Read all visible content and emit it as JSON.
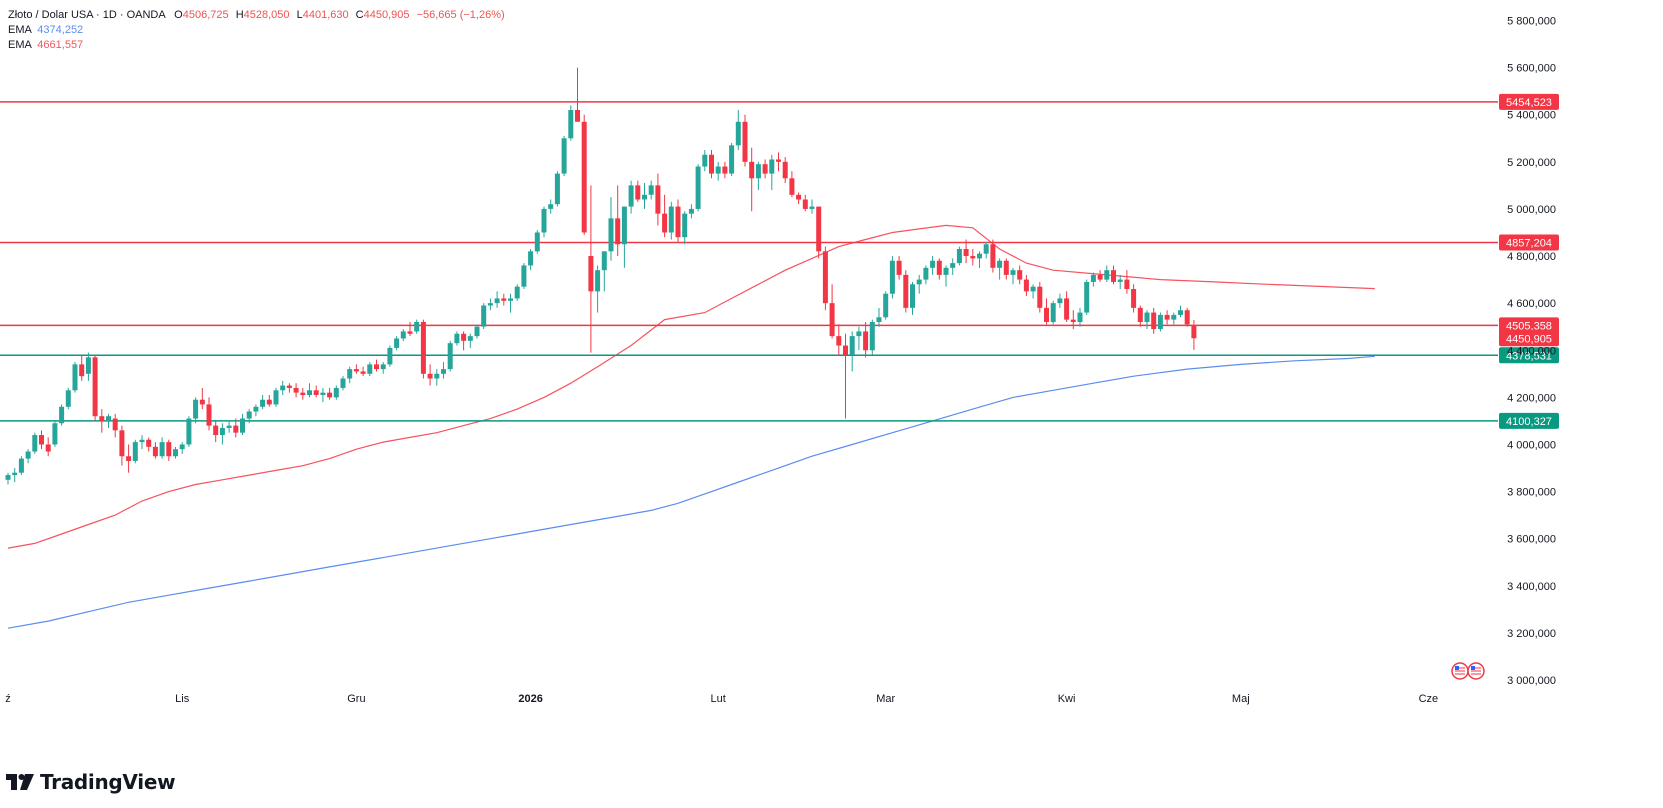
{
  "header": {
    "symbol_line": "Złoto / Dolar USA · 1D · OANDA",
    "o_label": "O",
    "o_value": "4506,725",
    "h_label": "H",
    "h_value": "4528,050",
    "l_label": "L",
    "l_value": "4401,630",
    "c_label": "C",
    "c_value": "4450,905",
    "change": "−56,665 (−1,26%)",
    "ema1_label": "EMA",
    "ema1_value": "4374,252",
    "ema2_label": "EMA",
    "ema2_value": "4661,557"
  },
  "brand": {
    "name": "TradingView"
  },
  "colors": {
    "up": "#26a69a",
    "down": "#f23645",
    "ema_fast": "#f7525f",
    "ema_slow": "#5b8def",
    "resistance": "#f23645",
    "support": "#089981"
  },
  "chart_data": {
    "type": "candlestick",
    "ylim": [
      3000,
      5900
    ],
    "y_ticks": [
      "3 000,000",
      "3 200,000",
      "3 400,000",
      "3 600,000",
      "3 800,000",
      "4 000,000",
      "4 200,000",
      "4 400,000",
      "4 600,000",
      "4 800,000",
      "5 000,000",
      "5 200,000",
      "5 400,000",
      "5 600,000",
      "5 800,000"
    ],
    "y_tick_values": [
      3000,
      3200,
      3400,
      3600,
      3800,
      4000,
      4200,
      4400,
      4600,
      4800,
      5000,
      5200,
      5400,
      5600,
      5800
    ],
    "x_ticks": [
      {
        "label": "ź",
        "index": 0
      },
      {
        "label": "Lis",
        "index": 26
      },
      {
        "label": "Gru",
        "index": 52
      },
      {
        "label": "2026",
        "index": 78
      },
      {
        "label": "Lut",
        "index": 106
      },
      {
        "label": "Mar",
        "index": 131
      },
      {
        "label": "Kwi",
        "index": 158
      },
      {
        "label": "Maj",
        "index": 184
      },
      {
        "label": "Cze",
        "index": 212
      }
    ],
    "levels": [
      {
        "value": 5454.523,
        "label": "5454,523",
        "kind": "resistance"
      },
      {
        "value": 4857.204,
        "label": "4857,204",
        "kind": "resistance"
      },
      {
        "value": 4505.358,
        "label": "4505,358",
        "kind": "resistance"
      },
      {
        "value": 4378.531,
        "label": "4378,531",
        "kind": "support"
      },
      {
        "value": 4100.327,
        "label": "4100,327",
        "kind": "support"
      }
    ],
    "last_price": {
      "value": 4450.905,
      "label": "4450,905"
    },
    "ema_fast": [
      3560,
      3580,
      3620,
      3660,
      3700,
      3760,
      3800,
      3830,
      3850,
      3870,
      3890,
      3910,
      3940,
      3980,
      4010,
      4030,
      4050,
      4080,
      4110,
      4150,
      4200,
      4260,
      4330,
      4420,
      4530,
      4560,
      4620,
      4680,
      4740,
      4790,
      4840,
      4870,
      4900,
      4915,
      4930,
      4920,
      4830,
      4770,
      4740,
      4720,
      4700,
      4690,
      4680,
      4661.557
    ],
    "ema_fast_x": [
      0,
      4,
      8,
      12,
      16,
      20,
      24,
      28,
      32,
      36,
      40,
      44,
      48,
      52,
      56,
      60,
      64,
      68,
      72,
      76,
      80,
      84,
      88,
      93,
      98,
      104,
      108,
      112,
      116,
      120,
      124,
      128,
      132,
      136,
      140,
      144,
      148,
      152,
      156,
      164,
      172,
      180,
      188,
      204
    ],
    "ema_slow": [
      3220,
      3250,
      3290,
      3330,
      3360,
      3390,
      3420,
      3450,
      3480,
      3510,
      3540,
      3570,
      3600,
      3630,
      3660,
      3690,
      3720,
      3750,
      3790,
      3830,
      3870,
      3910,
      3950,
      4000,
      4050,
      4100,
      4150,
      4200,
      4230,
      4260,
      4290,
      4320,
      4340,
      4355,
      4365,
      4374.252
    ],
    "ema_slow_x": [
      0,
      6,
      12,
      18,
      24,
      30,
      36,
      42,
      48,
      54,
      60,
      66,
      72,
      78,
      84,
      90,
      96,
      100,
      104,
      108,
      112,
      116,
      120,
      126,
      132,
      138,
      144,
      150,
      156,
      162,
      168,
      176,
      184,
      192,
      200,
      204
    ],
    "candles": [
      [
        3850,
        3880,
        3830,
        3870
      ],
      [
        3870,
        3900,
        3840,
        3880
      ],
      [
        3880,
        3950,
        3870,
        3940
      ],
      [
        3940,
        3980,
        3920,
        3970
      ],
      [
        3970,
        4050,
        3960,
        4040
      ],
      [
        4040,
        4060,
        3980,
        4000
      ],
      [
        4000,
        4030,
        3950,
        3970
      ],
      [
        4000,
        4100,
        3990,
        4090
      ],
      [
        4090,
        4170,
        4080,
        4160
      ],
      [
        4160,
        4240,
        4150,
        4230
      ],
      [
        4230,
        4350,
        4220,
        4340
      ],
      [
        4340,
        4380,
        4270,
        4290
      ],
      [
        4300,
        4390,
        4270,
        4370
      ],
      [
        4370,
        4380,
        4100,
        4120
      ],
      [
        4120,
        4150,
        4050,
        4100
      ],
      [
        4100,
        4130,
        4070,
        4120
      ],
      [
        4110,
        4130,
        4030,
        4060
      ],
      [
        4060,
        4080,
        3910,
        3950
      ],
      [
        3950,
        4000,
        3880,
        3930
      ],
      [
        3930,
        4020,
        3920,
        4010
      ],
      [
        4010,
        4040,
        3980,
        4020
      ],
      [
        4020,
        4030,
        3970,
        3990
      ],
      [
        3990,
        4010,
        3940,
        3950
      ],
      [
        3950,
        4030,
        3940,
        4010
      ],
      [
        4010,
        4020,
        3930,
        3950
      ],
      [
        3950,
        3990,
        3940,
        3980
      ],
      [
        3980,
        4010,
        3960,
        4000
      ],
      [
        4000,
        4120,
        3990,
        4110
      ],
      [
        4110,
        4200,
        4090,
        4190
      ],
      [
        4190,
        4240,
        4150,
        4170
      ],
      [
        4170,
        4200,
        4060,
        4080
      ],
      [
        4080,
        4100,
        4010,
        4040
      ],
      [
        4040,
        4090,
        4000,
        4070
      ],
      [
        4070,
        4100,
        4050,
        4080
      ],
      [
        4080,
        4110,
        4030,
        4050
      ],
      [
        4050,
        4130,
        4040,
        4110
      ],
      [
        4110,
        4150,
        4090,
        4140
      ],
      [
        4140,
        4170,
        4120,
        4160
      ],
      [
        4160,
        4210,
        4150,
        4190
      ],
      [
        4190,
        4210,
        4160,
        4170
      ],
      [
        4170,
        4240,
        4160,
        4230
      ],
      [
        4230,
        4270,
        4210,
        4250
      ],
      [
        4250,
        4260,
        4220,
        4240
      ],
      [
        4240,
        4260,
        4200,
        4220
      ],
      [
        4220,
        4240,
        4190,
        4210
      ],
      [
        4210,
        4260,
        4200,
        4230
      ],
      [
        4230,
        4250,
        4200,
        4210
      ],
      [
        4210,
        4240,
        4180,
        4220
      ],
      [
        4220,
        4240,
        4190,
        4200
      ],
      [
        4200,
        4250,
        4190,
        4240
      ],
      [
        4240,
        4290,
        4230,
        4280
      ],
      [
        4280,
        4330,
        4260,
        4320
      ],
      [
        4320,
        4340,
        4300,
        4310
      ],
      [
        4310,
        4330,
        4290,
        4300
      ],
      [
        4300,
        4350,
        4290,
        4340
      ],
      [
        4340,
        4360,
        4310,
        4320
      ],
      [
        4320,
        4350,
        4300,
        4340
      ],
      [
        4340,
        4420,
        4330,
        4410
      ],
      [
        4410,
        4460,
        4400,
        4450
      ],
      [
        4450,
        4490,
        4440,
        4480
      ],
      [
        4480,
        4520,
        4460,
        4470
      ],
      [
        4480,
        4530,
        4470,
        4520
      ],
      [
        4520,
        4530,
        4280,
        4300
      ],
      [
        4300,
        4340,
        4250,
        4280
      ],
      [
        4280,
        4320,
        4250,
        4300
      ],
      [
        4300,
        4350,
        4280,
        4320
      ],
      [
        4320,
        4440,
        4310,
        4430
      ],
      [
        4430,
        4480,
        4420,
        4470
      ],
      [
        4470,
        4480,
        4400,
        4440
      ],
      [
        4440,
        4470,
        4410,
        4460
      ],
      [
        4460,
        4510,
        4450,
        4500
      ],
      [
        4500,
        4600,
        4490,
        4590
      ],
      [
        4590,
        4620,
        4570,
        4600
      ],
      [
        4600,
        4650,
        4580,
        4620
      ],
      [
        4620,
        4640,
        4590,
        4610
      ],
      [
        4610,
        4640,
        4560,
        4620
      ],
      [
        4620,
        4680,
        4610,
        4670
      ],
      [
        4670,
        4770,
        4660,
        4760
      ],
      [
        4760,
        4830,
        4740,
        4820
      ],
      [
        4820,
        4910,
        4810,
        4900
      ],
      [
        4900,
        5010,
        4880,
        5000
      ],
      [
        5000,
        5040,
        4980,
        5020
      ],
      [
        5020,
        5160,
        5010,
        5150
      ],
      [
        5150,
        5310,
        5140,
        5300
      ],
      [
        5300,
        5440,
        5290,
        5420
      ],
      [
        5420,
        5600,
        5380,
        5370
      ],
      [
        5370,
        5400,
        4890,
        4900
      ],
      [
        4800,
        5100,
        4390,
        4650
      ],
      [
        4650,
        4760,
        4560,
        4740
      ],
      [
        4740,
        4820,
        4650,
        4820
      ],
      [
        4820,
        5050,
        4780,
        4960
      ],
      [
        4960,
        5100,
        4800,
        4850
      ],
      [
        4850,
        5010,
        4750,
        5010
      ],
      [
        5010,
        5120,
        4980,
        5100
      ],
      [
        5100,
        5120,
        5030,
        5040
      ],
      [
        5040,
        5110,
        5000,
        5060
      ],
      [
        5060,
        5120,
        5040,
        5100
      ],
      [
        5100,
        5150,
        4930,
        4980
      ],
      [
        4980,
        5060,
        4880,
        4900
      ],
      [
        4900,
        5030,
        4870,
        5010
      ],
      [
        5010,
        5040,
        4860,
        4880
      ],
      [
        4880,
        4990,
        4850,
        4980
      ],
      [
        4980,
        5020,
        4960,
        5000
      ],
      [
        5000,
        5190,
        4990,
        5180
      ],
      [
        5180,
        5250,
        5160,
        5230
      ],
      [
        5230,
        5250,
        5130,
        5150
      ],
      [
        5150,
        5200,
        5120,
        5180
      ],
      [
        5180,
        5200,
        5130,
        5150
      ],
      [
        5150,
        5280,
        5140,
        5270
      ],
      [
        5270,
        5420,
        5250,
        5370
      ],
      [
        5370,
        5400,
        5180,
        5200
      ],
      [
        5200,
        5260,
        4990,
        5130
      ],
      [
        5130,
        5200,
        5080,
        5190
      ],
      [
        5190,
        5210,
        5130,
        5150
      ],
      [
        5150,
        5230,
        5080,
        5210
      ],
      [
        5210,
        5240,
        5160,
        5200
      ],
      [
        5200,
        5220,
        5110,
        5130
      ],
      [
        5130,
        5160,
        5050,
        5060
      ],
      [
        5060,
        5070,
        5020,
        5040
      ],
      [
        5040,
        5060,
        4990,
        5000
      ],
      [
        5000,
        5040,
        4980,
        5010
      ],
      [
        5010,
        5000,
        4790,
        4820
      ],
      [
        4820,
        4840,
        4570,
        4600
      ],
      [
        4600,
        4680,
        4450,
        4460
      ],
      [
        4460,
        4510,
        4380,
        4420
      ],
      [
        4420,
        4470,
        4110,
        4380
      ],
      [
        4380,
        4480,
        4310,
        4460
      ],
      [
        4460,
        4500,
        4400,
        4480
      ],
      [
        4480,
        4520,
        4370,
        4400
      ],
      [
        4400,
        4530,
        4380,
        4520
      ],
      [
        4520,
        4580,
        4500,
        4540
      ],
      [
        4540,
        4650,
        4530,
        4640
      ],
      [
        4640,
        4800,
        4620,
        4780
      ],
      [
        4780,
        4800,
        4700,
        4720
      ],
      [
        4720,
        4740,
        4560,
        4580
      ],
      [
        4580,
        4690,
        4550,
        4680
      ],
      [
        4680,
        4720,
        4640,
        4700
      ],
      [
        4700,
        4760,
        4680,
        4750
      ],
      [
        4750,
        4800,
        4720,
        4780
      ],
      [
        4780,
        4790,
        4700,
        4720
      ],
      [
        4720,
        4760,
        4670,
        4750
      ],
      [
        4750,
        4790,
        4720,
        4770
      ],
      [
        4770,
        4840,
        4760,
        4830
      ],
      [
        4830,
        4870,
        4770,
        4800
      ],
      [
        4800,
        4830,
        4760,
        4790
      ],
      [
        4790,
        4820,
        4750,
        4810
      ],
      [
        4810,
        4860,
        4790,
        4850
      ],
      [
        4850,
        4870,
        4730,
        4750
      ],
      [
        4750,
        4790,
        4700,
        4780
      ],
      [
        4780,
        4790,
        4700,
        4720
      ],
      [
        4720,
        4750,
        4680,
        4740
      ],
      [
        4740,
        4760,
        4680,
        4700
      ],
      [
        4700,
        4720,
        4630,
        4650
      ],
      [
        4650,
        4680,
        4620,
        4670
      ],
      [
        4670,
        4690,
        4560,
        4580
      ],
      [
        4580,
        4620,
        4510,
        4520
      ],
      [
        4520,
        4610,
        4510,
        4600
      ],
      [
        4600,
        4640,
        4580,
        4620
      ],
      [
        4620,
        4650,
        4520,
        4530
      ],
      [
        4530,
        4570,
        4490,
        4520
      ],
      [
        4520,
        4580,
        4500,
        4560
      ],
      [
        4560,
        4700,
        4550,
        4690
      ],
      [
        4690,
        4730,
        4670,
        4720
      ],
      [
        4720,
        4740,
        4690,
        4700
      ],
      [
        4700,
        4760,
        4690,
        4740
      ],
      [
        4740,
        4760,
        4680,
        4690
      ],
      [
        4690,
        4720,
        4660,
        4700
      ],
      [
        4700,
        4740,
        4640,
        4660
      ],
      [
        4660,
        4680,
        4560,
        4580
      ],
      [
        4580,
        4590,
        4500,
        4520
      ],
      [
        4520,
        4570,
        4490,
        4560
      ],
      [
        4560,
        4580,
        4470,
        4490
      ],
      [
        4490,
        4560,
        4480,
        4550
      ],
      [
        4550,
        4570,
        4510,
        4530
      ],
      [
        4530,
        4560,
        4510,
        4550
      ],
      [
        4550,
        4590,
        4540,
        4570
      ],
      [
        4570,
        4580,
        4500,
        4510
      ],
      [
        4506.725,
        4528.05,
        4401.63,
        4450.905
      ]
    ]
  }
}
